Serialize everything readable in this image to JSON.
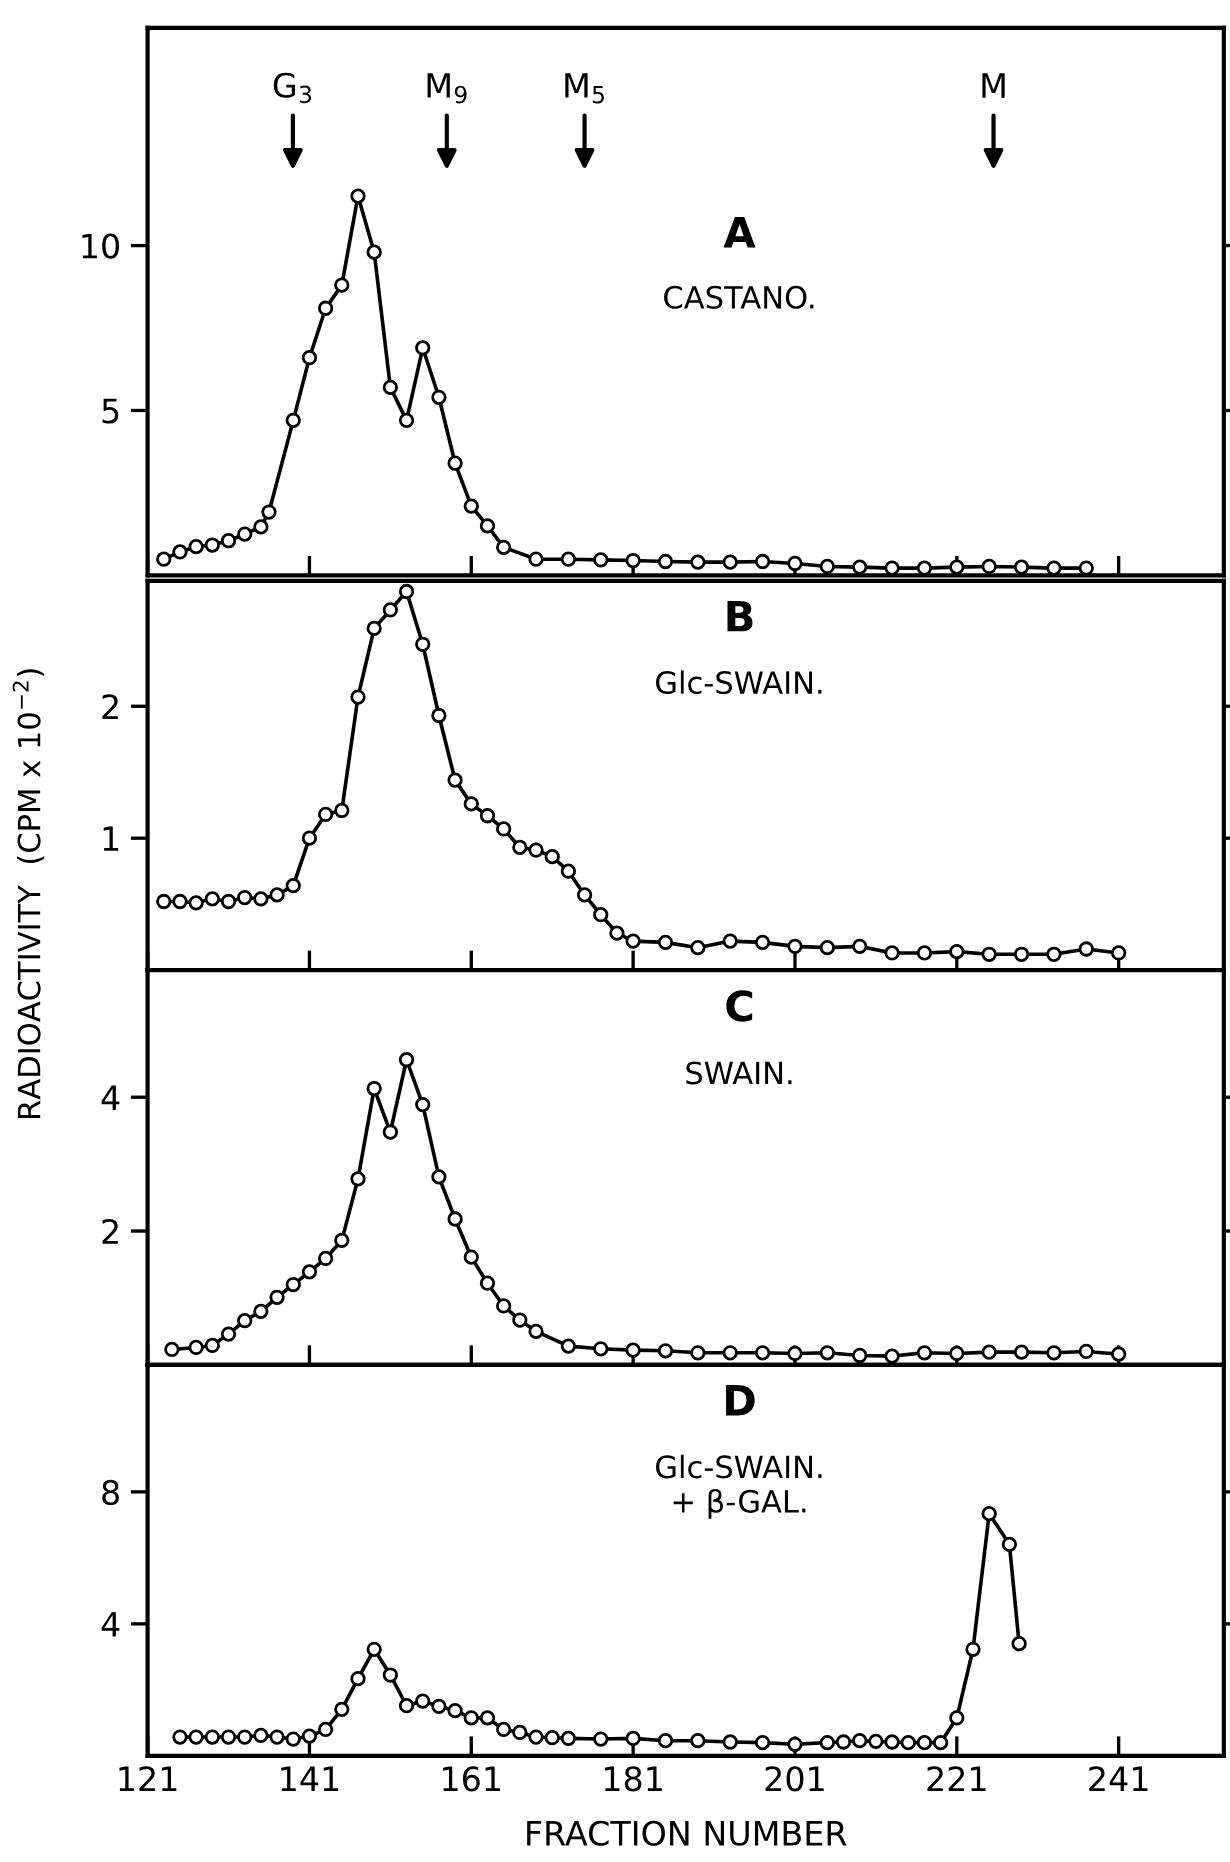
{
  "chart_data": [
    {
      "type": "line",
      "title": "A",
      "subtitle": "CASTANO.",
      "marker": "circle",
      "line_style": "solid",
      "grid": false,
      "tick_labels": "y",
      "xlim": [
        121,
        254
      ],
      "xticks": [
        {
          "value": 121,
          "label": null
        },
        {
          "value": 141,
          "label": null
        },
        {
          "value": 161,
          "label": null
        },
        {
          "value": 181,
          "label": null
        },
        {
          "value": 201,
          "label": null
        },
        {
          "value": 221,
          "label": null
        },
        {
          "value": 241,
          "label": null
        }
      ],
      "ylim": [
        0,
        16.6
      ],
      "yticks": [
        5,
        10
      ],
      "annotations": [
        "G$_{3}$",
        "M$_{9}$",
        "M$_{5}$",
        "M"
      ],
      "series": [
        {
          "color": "#000000",
          "x": [
            123,
            125,
            127,
            129,
            131,
            133,
            135,
            136,
            139,
            141,
            143,
            145,
            147,
            149,
            151,
            153,
            155,
            157,
            159,
            161,
            163,
            165,
            169,
            173,
            177,
            181,
            185,
            189,
            193,
            197,
            201,
            205,
            209,
            213,
            217,
            221,
            225,
            229,
            233,
            237
          ],
          "values": [
            0.49,
            0.71,
            0.87,
            0.92,
            1.05,
            1.25,
            1.47,
            1.92,
            4.7,
            6.6,
            8.1,
            8.8,
            11.5,
            9.8,
            5.7,
            4.7,
            6.9,
            5.4,
            3.4,
            2.1,
            1.5,
            0.85,
            0.49,
            0.49,
            0.47,
            0.45,
            0.42,
            0.4,
            0.4,
            0.42,
            0.36,
            0.27,
            0.25,
            0.22,
            0.22,
            0.25,
            0.27,
            0.25,
            0.22,
            0.22
          ]
        }
      ]
    },
    {
      "type": "line",
      "title": "B",
      "subtitle": "Glc-SWAIN.",
      "ylabel": "RADIOACTIVITY  (CPM x 10$^{−2}$)",
      "marker": "circle",
      "line_style": "solid",
      "grid": false,
      "tick_labels": "y",
      "xlim": [
        121,
        254
      ],
      "xticks": [
        {
          "value": 121,
          "label": null
        },
        {
          "value": 141,
          "label": null
        },
        {
          "value": 161,
          "label": null
        },
        {
          "value": 181,
          "label": null
        },
        {
          "value": 201,
          "label": null
        },
        {
          "value": 221,
          "label": null
        },
        {
          "value": 241,
          "label": null
        }
      ],
      "ylim": [
        0,
        2.95
      ],
      "yticks": [
        1,
        2
      ],
      "series": [
        {
          "color": "#000000",
          "x": [
            123,
            125,
            127,
            129,
            131,
            133,
            135,
            137,
            139,
            141,
            143,
            145,
            147,
            149,
            151,
            153,
            155,
            157,
            159,
            161,
            163,
            165,
            167,
            169,
            171,
            173,
            175,
            177,
            179,
            181,
            185,
            189,
            193,
            197,
            201,
            205,
            209,
            213,
            217,
            221,
            225,
            229,
            233,
            237,
            241
          ],
          "values": [
            0.52,
            0.52,
            0.51,
            0.54,
            0.52,
            0.55,
            0.54,
            0.57,
            0.64,
            1.0,
            1.18,
            1.21,
            2.07,
            2.59,
            2.73,
            2.87,
            2.47,
            1.93,
            1.44,
            1.26,
            1.17,
            1.07,
            0.93,
            0.91,
            0.86,
            0.75,
            0.57,
            0.42,
            0.28,
            0.22,
            0.21,
            0.17,
            0.22,
            0.21,
            0.18,
            0.17,
            0.18,
            0.13,
            0.13,
            0.14,
            0.12,
            0.12,
            0.12,
            0.16,
            0.13
          ]
        }
      ]
    },
    {
      "type": "line",
      "title": "C",
      "subtitle": "SWAIN.",
      "marker": "circle",
      "line_style": "solid",
      "grid": false,
      "tick_labels": "y",
      "xlim": [
        121,
        254
      ],
      "xticks": [
        {
          "value": 121,
          "label": null
        },
        {
          "value": 141,
          "label": null
        },
        {
          "value": 161,
          "label": null
        },
        {
          "value": 181,
          "label": null
        },
        {
          "value": 201,
          "label": null
        },
        {
          "value": 221,
          "label": null
        },
        {
          "value": 241,
          "label": null
        }
      ],
      "ylim": [
        0,
        5.9
      ],
      "yticks": [
        2,
        4
      ],
      "series": [
        {
          "color": "#000000",
          "x": [
            124,
            127,
            129,
            131,
            133,
            135,
            137,
            139,
            141,
            143,
            145,
            147,
            149,
            151,
            153,
            155,
            157,
            159,
            161,
            163,
            165,
            167,
            169,
            173,
            177,
            181,
            185,
            189,
            193,
            197,
            201,
            205,
            209,
            213,
            217,
            221,
            225,
            229,
            233,
            237,
            241
          ],
          "values": [
            0.23,
            0.26,
            0.29,
            0.46,
            0.66,
            0.8,
            1.01,
            1.2,
            1.39,
            1.59,
            1.86,
            2.78,
            4.13,
            3.48,
            4.56,
            3.89,
            2.81,
            2.18,
            1.61,
            1.22,
            0.88,
            0.67,
            0.5,
            0.28,
            0.24,
            0.22,
            0.21,
            0.18,
            0.18,
            0.18,
            0.17,
            0.18,
            0.14,
            0.13,
            0.18,
            0.17,
            0.19,
            0.19,
            0.18,
            0.2,
            0.16
          ]
        }
      ]
    },
    {
      "type": "line",
      "title": "D",
      "subtitle": "Glc-SWAIN.\n+ β-GAL.",
      "xlabel": "FRACTION NUMBER",
      "marker": "circle",
      "line_style": "solid",
      "grid": false,
      "xlim": [
        121,
        254
      ],
      "xticks": [
        121,
        141,
        161,
        181,
        201,
        221,
        241
      ],
      "ylim": [
        0,
        11.85
      ],
      "yticks": [
        4,
        8
      ],
      "series": [
        {
          "color": "#000000",
          "x": [
            125,
            127,
            129,
            131,
            133,
            135,
            137,
            139,
            141,
            143,
            145,
            147,
            149,
            151,
            153,
            155,
            157,
            159,
            161,
            163,
            165,
            167,
            169,
            171,
            173,
            177,
            181,
            185,
            189,
            193,
            197,
            201,
            205,
            207,
            209,
            211,
            213,
            215,
            217,
            219,
            221,
            223,
            225,
            227.5,
            228.7
          ],
          "values": [
            0.57,
            0.57,
            0.57,
            0.57,
            0.57,
            0.62,
            0.57,
            0.51,
            0.6,
            0.8,
            1.41,
            2.34,
            3.23,
            2.45,
            1.52,
            1.66,
            1.5,
            1.37,
            1.15,
            1.15,
            0.8,
            0.71,
            0.57,
            0.55,
            0.53,
            0.51,
            0.53,
            0.46,
            0.46,
            0.42,
            0.4,
            0.35,
            0.4,
            0.42,
            0.46,
            0.44,
            0.42,
            0.4,
            0.4,
            0.4,
            1.15,
            3.23,
            7.34,
            6.41,
            3.4
          ]
        }
      ]
    }
  ]
}
